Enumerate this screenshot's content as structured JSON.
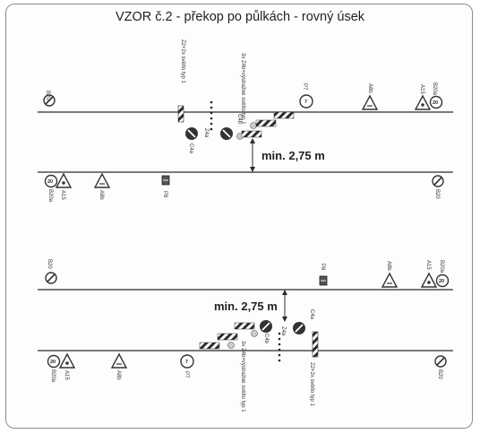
{
  "title": "VZOR č.2 - překop po půlkách - rovný úsek",
  "min_width_label": "min. 2,75 m",
  "signs": {
    "b20": "B20",
    "a15": "A15",
    "b20a": "B20a",
    "a8b": "A8b",
    "p8": "P8",
    "p7": "P7",
    "c4a": "C4a",
    "z4a": "Z4a",
    "c4b": "C4b",
    "s20": "20",
    "r7": "7"
  },
  "notes": {
    "z2_light": "Z2+2x světlo typ 1",
    "z4_warning": "3x Z4b+výstražné světlo typ 1"
  },
  "colors": {
    "road_line": "#2b2b2b",
    "sign_blue": "#2a4f8a",
    "sign_fill": "#f4f4f4",
    "barrier_red": "#b23a3a"
  }
}
